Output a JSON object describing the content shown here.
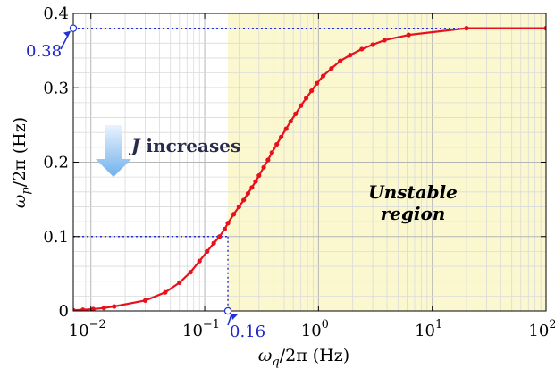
{
  "chart_data": {
    "type": "line",
    "x_scale": "log",
    "xlim": [
      0.007,
      100
    ],
    "ylim": [
      0,
      0.4
    ],
    "grid": true,
    "xlabel": {
      "base": "ω",
      "sub": "q",
      "rest": "/2π (Hz)"
    },
    "ylabel": {
      "base": "ω",
      "sub": "p",
      "rest": "/2π (Hz)"
    },
    "x_ticks": [
      {
        "value": 0.01,
        "label_base": "10",
        "label_exp": "−2"
      },
      {
        "value": 0.1,
        "label_base": "10",
        "label_exp": "−1"
      },
      {
        "value": 1,
        "label_base": "10",
        "label_exp": "0"
      },
      {
        "value": 10,
        "label_base": "10",
        "label_exp": "1"
      },
      {
        "value": 100,
        "label_base": "10",
        "label_exp": "2"
      }
    ],
    "y_ticks": [
      {
        "value": 0,
        "label": "0"
      },
      {
        "value": 0.1,
        "label": "0.1"
      },
      {
        "value": 0.2,
        "label": "0.2"
      },
      {
        "value": 0.3,
        "label": "0.3"
      },
      {
        "value": 0.4,
        "label": "0.4"
      }
    ],
    "series": [
      {
        "color": "#e8101a",
        "x": [
          0.007,
          0.0085,
          0.0105,
          0.013,
          0.016,
          0.03,
          0.045,
          0.06,
          0.075,
          0.09,
          0.105,
          0.12,
          0.135,
          0.15,
          0.16,
          0.18,
          0.2,
          0.22,
          0.24,
          0.26,
          0.28,
          0.3,
          0.33,
          0.36,
          0.39,
          0.43,
          0.47,
          0.52,
          0.57,
          0.63,
          0.7,
          0.78,
          0.87,
          0.97,
          1.1,
          1.3,
          1.55,
          1.9,
          2.4,
          3.0,
          3.8,
          6.2,
          20,
          100
        ],
        "y": [
          0.001,
          0.0015,
          0.0025,
          0.004,
          0.006,
          0.014,
          0.025,
          0.038,
          0.052,
          0.067,
          0.08,
          0.091,
          0.1,
          0.11,
          0.118,
          0.13,
          0.14,
          0.149,
          0.158,
          0.166,
          0.174,
          0.182,
          0.193,
          0.203,
          0.213,
          0.224,
          0.234,
          0.245,
          0.255,
          0.265,
          0.276,
          0.286,
          0.296,
          0.306,
          0.316,
          0.326,
          0.336,
          0.344,
          0.352,
          0.358,
          0.364,
          0.371,
          0.38,
          0.38
        ]
      }
    ],
    "shaded_region": {
      "x_from": 0.16,
      "x_to": 100,
      "color": "#fbf8cf"
    },
    "annotations": {
      "y_marker": {
        "label": "0.38",
        "value": 0.38
      },
      "x_marker": {
        "label": "0.16",
        "value": 0.16,
        "y_ref": 0.1
      },
      "region_label": [
        "Unstable",
        "region"
      ],
      "trend_label": {
        "italic": "J",
        "rest": " increases"
      }
    }
  }
}
